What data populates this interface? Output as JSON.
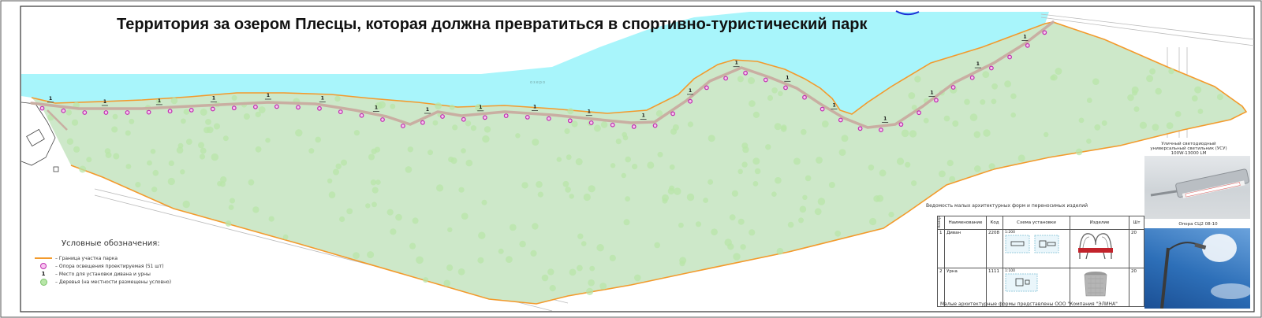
{
  "map": {
    "title": "Территория за озером Плесцы, которая должна превратиться в спортивно-туристический парк",
    "lake_label": "озеро",
    "colors": {
      "water": "#a8f5fb",
      "park": "#cde8c9",
      "boundary": "#f39a2c",
      "path": "#c9aea2",
      "lamp_fill": "#f7c6f0",
      "lamp_stroke": "#c02cb0",
      "tree": "#b8e6a8"
    }
  },
  "legend": {
    "title": "Условные обозначения:",
    "items": [
      {
        "icon": "park-boundary-line-icon",
        "label": "– Граница участка парка"
      },
      {
        "icon": "lamp-post-icon",
        "label": "– Опора освещения проектируемая (51 шт)"
      },
      {
        "icon": "bench-place-icon",
        "symbol": "1",
        "label": "– Место для установки дивана и урны"
      },
      {
        "icon": "tree-icon",
        "label": "– Деревья (на местности размещены условно)"
      }
    ]
  },
  "table": {
    "caption": "Ведомость малых архитектурных форм и переносимых изделий",
    "headers": [
      "Номер",
      "Наименование",
      "Код",
      "Схема установки",
      "Изделие",
      "Шт"
    ],
    "rows": [
      {
        "num": "1",
        "name": "Диван",
        "code": "2208",
        "scale": "1:200",
        "item_icon": "bench-icon",
        "qty": "20"
      },
      {
        "num": "2",
        "name": "Урна",
        "code": "1111",
        "scale": "1:100",
        "item_icon": "urn-icon",
        "qty": "20"
      }
    ],
    "footnote": "Малые архитектурные формы представлены ООО \"Компания \"ЭЛИНА\""
  },
  "photos": {
    "lamp_caption": "Уличный светодиодный универсальный светильник (УСУ) 100W-13000 LM",
    "pole_caption": "Опора СЦ2 08-10"
  }
}
